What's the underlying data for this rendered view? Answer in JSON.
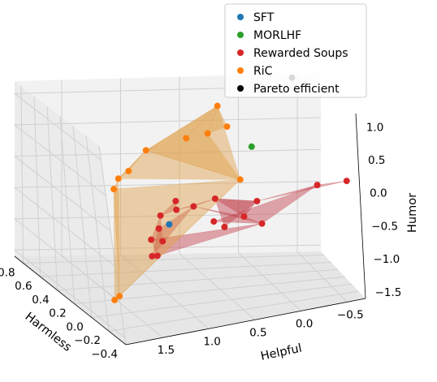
{
  "chart_data": {
    "type": "scatter",
    "projection": "3d",
    "xlabel": "Helpful",
    "ylabel": "Harmless",
    "zlabel": "Humor",
    "xlim": [
      -0.7,
      1.9
    ],
    "ylim": [
      -0.4,
      0.9
    ],
    "zlim": [
      -1.6,
      1.2
    ],
    "x_ticks": [
      "−0.5",
      "0.0",
      "0.5",
      "1.0",
      "1.5"
    ],
    "y_ticks": [
      "−0.4",
      "−0.2",
      "0.0",
      "0.2",
      "0.4",
      "0.6",
      "0.8"
    ],
    "z_ticks": [
      "−1.5",
      "−1.0",
      "−0.5",
      "0.0",
      "0.5",
      "1.0"
    ],
    "grid": true,
    "legend_position": "top-right",
    "series": [
      {
        "name": "SFT",
        "color": "#1f77b4",
        "points": [
          [
            0.95,
            0.2,
            -0.55
          ]
        ]
      },
      {
        "name": "MORLHF",
        "color": "#2ca02c",
        "points": [
          [
            0.1,
            0.3,
            0.45
          ]
        ]
      },
      {
        "name": "Rewarded Soups",
        "color": "#d62728",
        "hull_color": "#c2404b",
        "points": [
          [
            -0.6,
            -0.3,
            0.15
          ],
          [
            -0.3,
            -0.3,
            0.15
          ],
          [
            0.3,
            -0.25,
            0.0
          ],
          [
            0.35,
            -0.05,
            -0.35
          ],
          [
            0.55,
            0.1,
            -0.15
          ],
          [
            0.75,
            0.12,
            -0.25
          ],
          [
            0.9,
            0.15,
            -0.3
          ],
          [
            0.85,
            0.25,
            -0.25
          ],
          [
            1.0,
            0.25,
            -0.45
          ],
          [
            1.05,
            0.2,
            -0.6
          ],
          [
            1.05,
            0.15,
            -0.75
          ],
          [
            1.1,
            0.25,
            -0.8
          ],
          [
            1.1,
            0.25,
            -1.05
          ],
          [
            1.05,
            0.25,
            -1.05
          ],
          [
            0.6,
            0.05,
            -0.45
          ],
          [
            0.5,
            0.05,
            -0.55
          ],
          [
            0.2,
            -0.1,
            -0.45
          ]
        ],
        "hull": [
          [
            0,
            1,
            2
          ],
          [
            2,
            3,
            4
          ],
          [
            4,
            5,
            6
          ],
          [
            6,
            7,
            8
          ],
          [
            8,
            10,
            11
          ],
          [
            11,
            13,
            16
          ],
          [
            16,
            3,
            5
          ],
          [
            5,
            9,
            12
          ],
          [
            2,
            4,
            15
          ],
          [
            1,
            14,
            16
          ]
        ]
      },
      {
        "name": "RiC",
        "color": "#ff7f0e",
        "hull_color": "#e0a04a",
        "points": [
          [
            0.25,
            0.7,
            0.85
          ],
          [
            0.3,
            0.35,
            0.75
          ],
          [
            0.5,
            0.3,
            0.7
          ],
          [
            0.7,
            0.3,
            0.65
          ],
          [
            1.1,
            0.25,
            0.55
          ],
          [
            1.3,
            0.2,
            0.3
          ],
          [
            1.4,
            0.2,
            0.2
          ],
          [
            1.45,
            0.2,
            0.05
          ],
          [
            1.5,
            0.15,
            -1.5
          ],
          [
            1.55,
            0.15,
            -1.55
          ],
          [
            0.3,
            0.1,
            0.1
          ]
        ],
        "hull": [
          [
            0,
            1,
            2
          ],
          [
            0,
            2,
            3
          ],
          [
            0,
            3,
            4
          ],
          [
            4,
            5,
            6
          ],
          [
            6,
            7,
            8
          ],
          [
            8,
            9,
            10
          ],
          [
            10,
            2,
            4
          ],
          [
            7,
            10,
            9
          ],
          [
            4,
            6,
            10
          ],
          [
            0,
            4,
            10
          ]
        ]
      },
      {
        "name": "Pareto efficient",
        "color": "#000000",
        "points": [
          [
            -0.45,
            0.88,
            1.15
          ]
        ]
      }
    ]
  }
}
